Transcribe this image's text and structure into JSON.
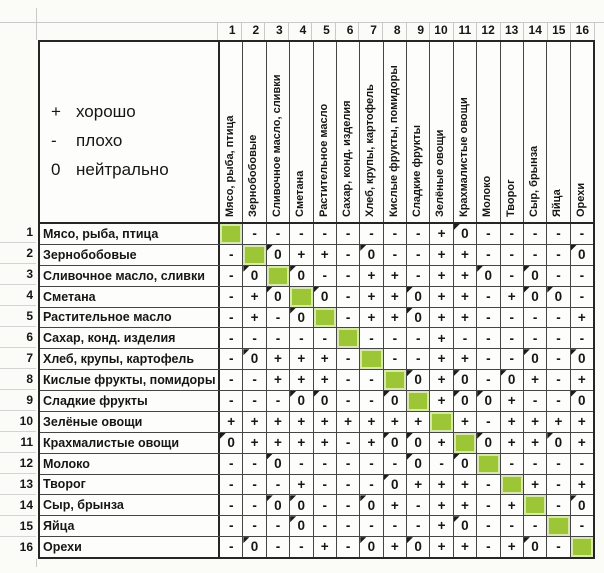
{
  "colors": {
    "diagonal_green": "#9dc636",
    "grid_dark": "#454545",
    "table_border": "#262626",
    "grid_light": "#c9c9c9",
    "text": "#161616",
    "background": "#fbfbf8"
  },
  "chart_data": {
    "type": "table",
    "title": "",
    "legend": {
      "items": [
        {
          "symbol": "+",
          "label": "хорошо"
        },
        {
          "symbol": "-",
          "label": "плохо"
        },
        {
          "symbol": "0",
          "label": "нейтрально"
        }
      ]
    },
    "index_numbers": [
      "1",
      "2",
      "3",
      "4",
      "5",
      "6",
      "7",
      "8",
      "9",
      "10",
      "11",
      "12",
      "13",
      "14",
      "15",
      "16"
    ],
    "foods": [
      "Мясо, рыба, птица",
      "Зернобобовые",
      "Сливочное масло, сливки",
      "Сметана",
      "Растительное масло",
      "Сахар, конд. изделия",
      "Хлеб, крупы, картофель",
      "Кислые фрукты, помидоры",
      "Сладкие фрукты",
      "Зелёные овощи",
      "Крахмалистые овощи",
      "Молоко",
      "Творог",
      "Сыр, брынза",
      "Яйца",
      "Орехи"
    ],
    "diagonal_fill": "green",
    "matrix": [
      [
        "",
        "-",
        "-",
        "-",
        "-",
        "-",
        "-",
        "-",
        "-",
        "+",
        "0",
        "-",
        "-",
        "-",
        "-",
        "-"
      ],
      [
        "-",
        "",
        "0",
        "+",
        "+",
        "-",
        "0",
        "-",
        "-",
        "+",
        "+",
        "-",
        "-",
        "-",
        "-",
        "0"
      ],
      [
        "-",
        "0",
        "",
        "0",
        "-",
        "-",
        "+",
        "+",
        "-",
        "+",
        "+",
        "0",
        "-",
        "0",
        "-",
        "-"
      ],
      [
        "-",
        "+",
        "0",
        "",
        "0",
        "-",
        "+",
        "+",
        "0",
        "+",
        "+",
        "-",
        "+",
        "0",
        "0",
        "-"
      ],
      [
        "-",
        "+",
        "-",
        "0",
        "",
        "-",
        "+",
        "+",
        "0",
        "+",
        "+",
        "-",
        "-",
        "-",
        "-",
        "+"
      ],
      [
        "-",
        "-",
        "-",
        "-",
        "-",
        "",
        "-",
        "-",
        "-",
        "+",
        "-",
        "-",
        "-",
        "-",
        "-",
        "-"
      ],
      [
        "-",
        "0",
        "+",
        "+",
        "+",
        "-",
        "",
        "-",
        "-",
        "+",
        "+",
        "-",
        "-",
        "0",
        "-",
        "0"
      ],
      [
        "-",
        "-",
        "+",
        "+",
        "+",
        "-",
        "-",
        "",
        "0",
        "+",
        "0",
        "-",
        "0",
        "+",
        "-",
        "+"
      ],
      [
        "-",
        "-",
        "-",
        "0",
        "0",
        "-",
        "-",
        "0",
        "",
        "+",
        "0",
        "0",
        "+",
        "-",
        "-",
        "0"
      ],
      [
        "+",
        "+",
        "+",
        "+",
        "+",
        "+",
        "+",
        "+",
        "+",
        "",
        "+",
        "-",
        "+",
        "+",
        "+",
        "+"
      ],
      [
        "0",
        "+",
        "+",
        "+",
        "+",
        "-",
        "+",
        "0",
        "0",
        "+",
        "",
        "0",
        "+",
        "+",
        "0",
        "+"
      ],
      [
        "-",
        "-",
        "0",
        "-",
        "-",
        "-",
        "-",
        "-",
        "0",
        "-",
        "0",
        "",
        "-",
        "-",
        "-",
        "-"
      ],
      [
        "-",
        "-",
        "-",
        "+",
        "-",
        "-",
        "-",
        "0",
        "+",
        "+",
        "+",
        "-",
        "",
        "+",
        "-",
        "+"
      ],
      [
        "-",
        "-",
        "0",
        "0",
        "-",
        "-",
        "0",
        "+",
        "-",
        "+",
        "+",
        "-",
        "+",
        "",
        "-",
        "0"
      ],
      [
        "-",
        "-",
        "-",
        "0",
        "-",
        "-",
        "-",
        "-",
        "-",
        "+",
        "0",
        "-",
        "-",
        "-",
        "",
        "-"
      ],
      [
        "-",
        "0",
        "-",
        "-",
        "+",
        "-",
        "0",
        "+",
        "0",
        "+",
        "+",
        "-",
        "+",
        "0",
        "-",
        ""
      ]
    ]
  }
}
